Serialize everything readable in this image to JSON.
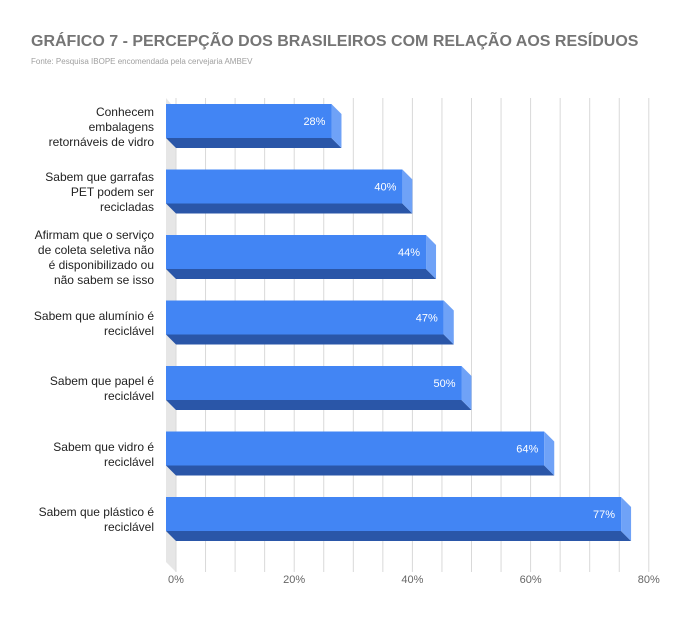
{
  "chart_data": {
    "type": "bar",
    "orientation": "horizontal",
    "title": "GRÁFICO 7 - PERCEPÇÃO DOS BRASILEIROS COM RELAÇÃO AOS RESÍDUOS",
    "subtitle": "Fonte: Pesquisa IBOPE encomendada pela cervejaria AMBEV",
    "categories": [
      "Conhecem embalagens retornáveis de vidro",
      "Sabem que garrafas PET podem ser recicladas",
      "Afirmam que o serviço de coleta seletiva não é disponibilizado ou não sabem se isso",
      "Sabem que alumínio é reciclável",
      "Sabem que papel é reciclável",
      "Sabem que vidro é reciclável",
      "Sabem que plástico é reciclável"
    ],
    "category_lines": [
      "Conhecem\nembalagens\nretornáveis de vidro",
      "Sabem que garrafas\nPET podem ser\nrecicladas",
      "Afirmam que o serviço\nde coleta seletiva não\né disponibilizado ou\nnão sabem se isso",
      "Sabem que alumínio é\nreciclável",
      "Sabem que papel é\nreciclável",
      "Sabem que vidro é\nreciclável",
      "Sabem que plástico é\nreciclável"
    ],
    "values": [
      28,
      40,
      44,
      47,
      50,
      64,
      77
    ],
    "data_labels": [
      "28%",
      "40%",
      "44%",
      "47%",
      "50%",
      "64%",
      "77%"
    ],
    "xlim": [
      0,
      80
    ],
    "x_ticks": [
      0,
      20,
      40,
      60,
      80
    ],
    "x_tick_labels": [
      "0%",
      "20%",
      "40%",
      "60%",
      "80%"
    ],
    "grid": true,
    "legend": "none",
    "bar_3d": true,
    "colors": {
      "bar_front": "#4285f4",
      "bar_side": "#6fa2f7",
      "bar_bottom": "#2a56a8",
      "grid": "#d9d9d9",
      "wall": "#e6e6e6",
      "title": "#757575"
    }
  }
}
